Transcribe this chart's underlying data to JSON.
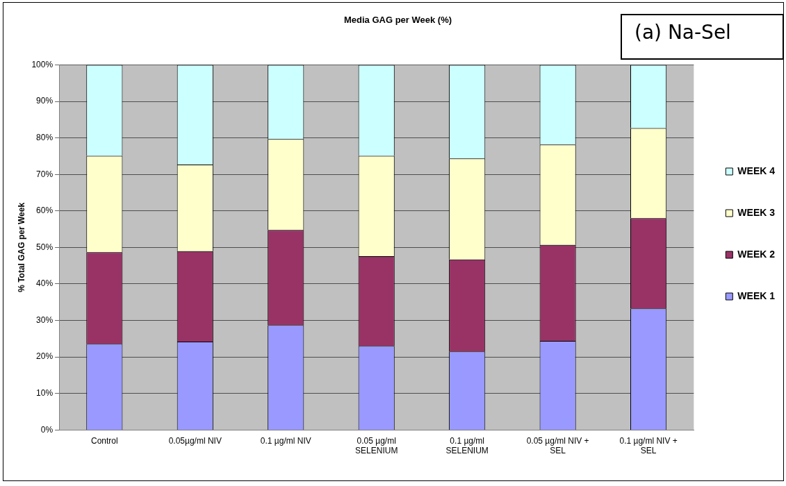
{
  "chart_data": {
    "type": "bar",
    "title": "Media GAG per Week (%)",
    "ylabel": "% Total GAG per Week",
    "annotations": [
      "(a) Na-Sel"
    ],
    "categories": [
      "Control",
      "0.05µg/ml NIV",
      "0.1 µg/ml NIV",
      "0.05 µg/ml SELENIUM",
      "0.1 µg/ml SELENIUM",
      "0.05 µg/ml NIV + SEL",
      "0.1 µg/ml NIV + SEL"
    ],
    "stacked": true,
    "series": [
      {
        "name": "WEEK 1",
        "color": "#9999ff",
        "values": [
          23.6,
          24.2,
          28.7,
          23.0,
          21.5,
          24.4,
          33.3
        ]
      },
      {
        "name": "WEEK 2",
        "color": "#993366",
        "values": [
          25.1,
          24.8,
          26.1,
          24.6,
          25.2,
          26.3,
          24.7
        ]
      },
      {
        "name": "WEEK 3",
        "color": "#ffffcc",
        "values": [
          26.4,
          23.7,
          24.9,
          27.5,
          27.7,
          27.5,
          24.7
        ]
      },
      {
        "name": "WEEK 4",
        "color": "#ccffff",
        "values": [
          24.9,
          27.3,
          20.3,
          24.9,
          25.6,
          21.8,
          17.3
        ]
      }
    ],
    "ylim": [
      0,
      100
    ],
    "yticks": [
      {
        "value": 0,
        "label": "0%"
      },
      {
        "value": 10,
        "label": "10%"
      },
      {
        "value": 20,
        "label": "20%"
      },
      {
        "value": 30,
        "label": "30%"
      },
      {
        "value": 40,
        "label": "40%"
      },
      {
        "value": 50,
        "label": "50%"
      },
      {
        "value": 60,
        "label": "60%"
      },
      {
        "value": 70,
        "label": "70%"
      },
      {
        "value": 80,
        "label": "80%"
      },
      {
        "value": 90,
        "label": "90%"
      },
      {
        "value": 100,
        "label": "100%"
      }
    ],
    "grid": "y",
    "legend": "right"
  }
}
